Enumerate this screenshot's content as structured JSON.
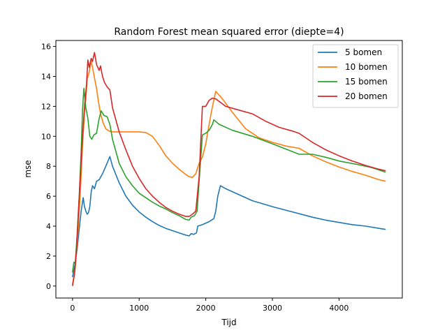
{
  "chart_data": {
    "type": "line",
    "title": "Random Forest mean squared error (diepte=4)",
    "xlabel": "Tijd",
    "ylabel": "mse",
    "xlim": [
      -250,
      4950
    ],
    "ylim": [
      -0.8,
      16.4
    ],
    "xticks": [
      0,
      1000,
      2000,
      3000,
      4000
    ],
    "yticks": [
      0,
      2,
      4,
      6,
      8,
      10,
      12,
      14,
      16
    ],
    "grid": false,
    "legend": "top-right",
    "series": [
      {
        "name": "5 bomen",
        "color": "#1f77b4",
        "points": [
          [
            0,
            0.6
          ],
          [
            40,
            1.5
          ],
          [
            70,
            2.5
          ],
          [
            100,
            3.8
          ],
          [
            130,
            5.0
          ],
          [
            160,
            5.9
          ],
          [
            180,
            5.3
          ],
          [
            200,
            5.0
          ],
          [
            220,
            4.8
          ],
          [
            240,
            4.9
          ],
          [
            260,
            5.3
          ],
          [
            280,
            6.3
          ],
          [
            300,
            6.7
          ],
          [
            330,
            6.5
          ],
          [
            360,
            7.0
          ],
          [
            400,
            7.1
          ],
          [
            450,
            7.5
          ],
          [
            500,
            8.0
          ],
          [
            560,
            8.65
          ],
          [
            600,
            8.0
          ],
          [
            700,
            6.9
          ],
          [
            800,
            6.0
          ],
          [
            900,
            5.4
          ],
          [
            1000,
            4.95
          ],
          [
            1100,
            4.6
          ],
          [
            1200,
            4.3
          ],
          [
            1300,
            4.05
          ],
          [
            1400,
            3.85
          ],
          [
            1500,
            3.7
          ],
          [
            1600,
            3.55
          ],
          [
            1700,
            3.4
          ],
          [
            1750,
            3.35
          ],
          [
            1780,
            3.5
          ],
          [
            1820,
            3.45
          ],
          [
            1860,
            3.55
          ],
          [
            1880,
            4.0
          ],
          [
            1950,
            4.1
          ],
          [
            2050,
            4.3
          ],
          [
            2120,
            4.5
          ],
          [
            2150,
            5.0
          ],
          [
            2180,
            6.0
          ],
          [
            2220,
            6.7
          ],
          [
            2300,
            6.5
          ],
          [
            2500,
            6.1
          ],
          [
            2700,
            5.7
          ],
          [
            3000,
            5.3
          ],
          [
            3300,
            4.95
          ],
          [
            3600,
            4.6
          ],
          [
            3800,
            4.4
          ],
          [
            4000,
            4.25
          ],
          [
            4200,
            4.1
          ],
          [
            4400,
            4.0
          ],
          [
            4600,
            3.85
          ],
          [
            4700,
            3.78
          ]
        ]
      },
      {
        "name": "10 bomen",
        "color": "#ff7f0e",
        "points": [
          [
            0,
            0.1
          ],
          [
            40,
            1.2
          ],
          [
            80,
            3.5
          ],
          [
            120,
            6.5
          ],
          [
            150,
            9.5
          ],
          [
            180,
            11.5
          ],
          [
            200,
            12.5
          ],
          [
            220,
            13.8
          ],
          [
            250,
            14.3
          ],
          [
            280,
            15.0
          ],
          [
            300,
            14.6
          ],
          [
            330,
            13.9
          ],
          [
            360,
            13.2
          ],
          [
            390,
            12.3
          ],
          [
            420,
            11.5
          ],
          [
            460,
            10.9
          ],
          [
            500,
            10.5
          ],
          [
            550,
            10.35
          ],
          [
            600,
            10.3
          ],
          [
            800,
            10.3
          ],
          [
            1000,
            10.3
          ],
          [
            1100,
            10.25
          ],
          [
            1200,
            10.0
          ],
          [
            1300,
            9.4
          ],
          [
            1400,
            8.7
          ],
          [
            1500,
            8.2
          ],
          [
            1600,
            7.8
          ],
          [
            1700,
            7.45
          ],
          [
            1750,
            7.3
          ],
          [
            1800,
            7.25
          ],
          [
            1850,
            7.5
          ],
          [
            1900,
            8.2
          ],
          [
            1950,
            8.6
          ],
          [
            2000,
            9.5
          ],
          [
            2050,
            10.8
          ],
          [
            2100,
            12.0
          ],
          [
            2150,
            13.0
          ],
          [
            2250,
            12.5
          ],
          [
            2400,
            11.6
          ],
          [
            2600,
            10.5
          ],
          [
            2800,
            9.9
          ],
          [
            3000,
            9.6
          ],
          [
            3200,
            9.35
          ],
          [
            3400,
            9.2
          ],
          [
            3600,
            8.7
          ],
          [
            3800,
            8.3
          ],
          [
            4000,
            7.95
          ],
          [
            4200,
            7.65
          ],
          [
            4400,
            7.4
          ],
          [
            4600,
            7.1
          ],
          [
            4700,
            7.0
          ]
        ]
      },
      {
        "name": "15 bomen",
        "color": "#2ca02c",
        "points": [
          [
            0,
            0.9
          ],
          [
            20,
            1.6
          ],
          [
            40,
            1.5
          ],
          [
            70,
            3.5
          ],
          [
            100,
            6.0
          ],
          [
            130,
            9.0
          ],
          [
            150,
            11.8
          ],
          [
            170,
            13.2
          ],
          [
            200,
            11.9
          ],
          [
            230,
            11.2
          ],
          [
            260,
            10.0
          ],
          [
            290,
            9.8
          ],
          [
            320,
            10.1
          ],
          [
            360,
            10.2
          ],
          [
            400,
            11.2
          ],
          [
            430,
            11.7
          ],
          [
            470,
            11.4
          ],
          [
            520,
            11.3
          ],
          [
            560,
            10.8
          ],
          [
            600,
            9.8
          ],
          [
            700,
            8.2
          ],
          [
            800,
            7.3
          ],
          [
            900,
            6.7
          ],
          [
            1000,
            6.2
          ],
          [
            1100,
            5.9
          ],
          [
            1200,
            5.6
          ],
          [
            1300,
            5.35
          ],
          [
            1400,
            5.15
          ],
          [
            1500,
            4.9
          ],
          [
            1600,
            4.7
          ],
          [
            1700,
            4.45
          ],
          [
            1750,
            4.4
          ],
          [
            1780,
            4.6
          ],
          [
            1830,
            4.7
          ],
          [
            1870,
            5.0
          ],
          [
            1900,
            7.0
          ],
          [
            1950,
            10.1
          ],
          [
            2000,
            10.2
          ],
          [
            2050,
            10.4
          ],
          [
            2100,
            10.8
          ],
          [
            2120,
            11.1
          ],
          [
            2200,
            10.8
          ],
          [
            2400,
            10.4
          ],
          [
            2700,
            10.0
          ],
          [
            3000,
            9.5
          ],
          [
            3200,
            9.15
          ],
          [
            3400,
            8.8
          ],
          [
            3600,
            8.8
          ],
          [
            3800,
            8.6
          ],
          [
            4000,
            8.35
          ],
          [
            4300,
            8.1
          ],
          [
            4500,
            7.9
          ],
          [
            4700,
            7.6
          ]
        ]
      },
      {
        "name": "20 bomen",
        "color": "#d62728",
        "points": [
          [
            0,
            0.0
          ],
          [
            30,
            0.8
          ],
          [
            60,
            2.5
          ],
          [
            90,
            5.0
          ],
          [
            120,
            7.5
          ],
          [
            150,
            10.0
          ],
          [
            180,
            12.0
          ],
          [
            210,
            13.5
          ],
          [
            230,
            15.1
          ],
          [
            250,
            14.6
          ],
          [
            280,
            15.2
          ],
          [
            300,
            15.0
          ],
          [
            330,
            15.6
          ],
          [
            360,
            14.8
          ],
          [
            400,
            14.4
          ],
          [
            420,
            14.7
          ],
          [
            450,
            14.0
          ],
          [
            480,
            13.6
          ],
          [
            520,
            13.3
          ],
          [
            560,
            13.1
          ],
          [
            600,
            11.9
          ],
          [
            700,
            10.3
          ],
          [
            800,
            9.1
          ],
          [
            900,
            8.0
          ],
          [
            1000,
            7.2
          ],
          [
            1100,
            6.5
          ],
          [
            1200,
            6.0
          ],
          [
            1300,
            5.6
          ],
          [
            1400,
            5.25
          ],
          [
            1500,
            5.0
          ],
          [
            1600,
            4.8
          ],
          [
            1700,
            4.65
          ],
          [
            1750,
            4.65
          ],
          [
            1800,
            4.8
          ],
          [
            1850,
            5.0
          ],
          [
            1900,
            7.3
          ],
          [
            1950,
            12.0
          ],
          [
            2000,
            12.0
          ],
          [
            2050,
            12.4
          ],
          [
            2100,
            12.55
          ],
          [
            2150,
            12.5
          ],
          [
            2300,
            12.0
          ],
          [
            2500,
            11.75
          ],
          [
            2700,
            11.5
          ],
          [
            2900,
            11.0
          ],
          [
            3100,
            10.6
          ],
          [
            3300,
            10.35
          ],
          [
            3400,
            10.2
          ],
          [
            3600,
            9.6
          ],
          [
            3800,
            9.1
          ],
          [
            4000,
            8.7
          ],
          [
            4200,
            8.35
          ],
          [
            4400,
            8.05
          ],
          [
            4600,
            7.8
          ],
          [
            4700,
            7.7
          ]
        ]
      }
    ]
  }
}
